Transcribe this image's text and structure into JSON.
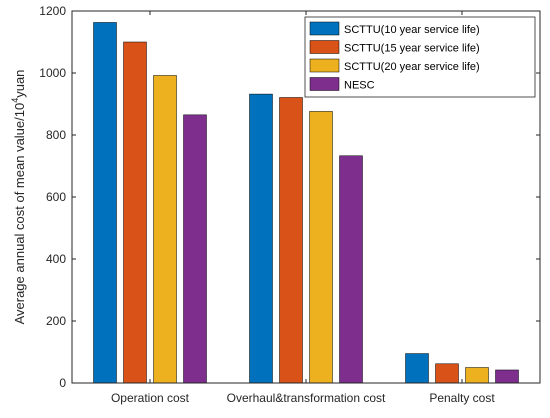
{
  "chart_data": {
    "type": "bar",
    "categories": [
      "Operation cost",
      "Overhaul&transformation cost",
      "Penalty cost"
    ],
    "series": [
      {
        "name": "SCTTU(10 year service life)",
        "color": "#0072BD",
        "values": [
          1163,
          932,
          95
        ]
      },
      {
        "name": "SCTTU(15 year service life)",
        "color": "#D95319",
        "values": [
          1100,
          921,
          62
        ]
      },
      {
        "name": "SCTTU(20 year service life)",
        "color": "#EDB120",
        "values": [
          992,
          876,
          50
        ]
      },
      {
        "name": "NESC",
        "color": "#7E2F8E",
        "values": [
          865,
          733,
          42
        ]
      }
    ],
    "ylabel_main": "Average annual cost of mean value/10",
    "ylabel_sup": "4",
    "ylabel_unit": "yuan",
    "xlabel": "",
    "ylim": [
      0,
      1200
    ],
    "yticks": [
      "0",
      "200",
      "400",
      "600",
      "800",
      "1000",
      "1200"
    ],
    "grid": false,
    "legend_position": "top-right"
  }
}
